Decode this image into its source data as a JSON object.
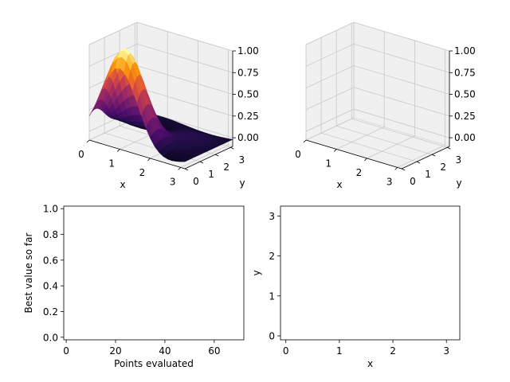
{
  "chart_data": [
    {
      "type": "surface3d",
      "xlabel": "x",
      "ylabel": "y",
      "x_ticks": [
        "0",
        "1",
        "2",
        "3"
      ],
      "y_ticks": [
        "0",
        "1",
        "2",
        "3"
      ],
      "z_ticks": [
        "0.00",
        "0.25",
        "0.50",
        "0.75",
        "1.00"
      ],
      "xlim": [
        0,
        3.14
      ],
      "ylim": [
        0,
        3.14
      ],
      "zlim": [
        -0.1,
        1.0
      ],
      "colormap": "inferno",
      "pane_color": "#f0f0f0",
      "peak": {
        "x": 1.0,
        "y": 0.4,
        "z": 1.0
      },
      "grid": true
    },
    {
      "type": "surface3d-empty",
      "xlabel": "x",
      "ylabel": "y",
      "x_ticks": [
        "0",
        "1",
        "2",
        "3"
      ],
      "y_ticks": [
        "0",
        "1",
        "2",
        "3"
      ],
      "z_ticks": [
        "0.00",
        "0.25",
        "0.50",
        "0.75",
        "1.00"
      ],
      "xlim": [
        0,
        3.14
      ],
      "ylim": [
        0,
        3.14
      ],
      "zlim": [
        -0.1,
        1.0
      ],
      "pane_color": "#f0f0f0",
      "grid": true
    },
    {
      "type": "line",
      "xlabel": "Points evaluated",
      "ylabel": "Best value so far",
      "xlim": [
        -1,
        72
      ],
      "ylim": [
        -0.02,
        1.02
      ],
      "x_ticks": [
        0,
        20,
        40,
        60
      ],
      "y_ticks": [
        0.0,
        0.2,
        0.4,
        0.6,
        0.8,
        1.0
      ],
      "y_tick_labels": [
        "0.0",
        "0.2",
        "0.4",
        "0.6",
        "0.8",
        "1.0"
      ],
      "series": []
    },
    {
      "type": "scatter",
      "xlabel": "x",
      "ylabel": "y",
      "xlim": [
        -0.1,
        3.25
      ],
      "ylim": [
        -0.1,
        3.25
      ],
      "x_ticks": [
        0,
        1,
        2,
        3
      ],
      "y_ticks": [
        0,
        1,
        2,
        3
      ],
      "series": []
    }
  ]
}
